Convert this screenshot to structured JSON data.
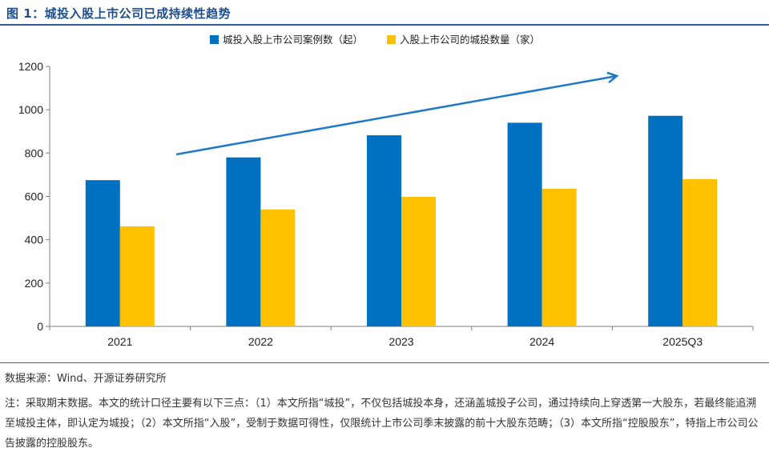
{
  "figure_title": "图 1：城投入股上市公司已成持续性趋势",
  "source_text": "数据来源：Wind、开源证券研究所",
  "note_text": "注：采取期末数据。本文的统计口径主要有以下三点：（1）本文所指“城投”，不仅包括城投本身，还涵盖城投子公司，通过持续向上穿透第一大股东，若最终能追溯至城投主体，即认定为城投；（2）本文所指“入股”，受制于数据可得性，仅限统计上市公司季末披露的前十大股东范畴；（3）本文所指“控股股东”，特指上市公司公告披露的控股股东。",
  "colors": {
    "series_1": "#0070c0",
    "series_2": "#ffc000",
    "arrow": "#1f78c8",
    "title": "#1f4e8c"
  },
  "chart_data": {
    "type": "bar",
    "title": "",
    "xlabel": "",
    "ylabel": "",
    "categories": [
      "2021",
      "2022",
      "2023",
      "2024",
      "2025Q3"
    ],
    "series": [
      {
        "name": "城投入股上市公司案例数（起）",
        "values": [
          675,
          780,
          882,
          940,
          972
        ]
      },
      {
        "name": "入股上市公司的城投数量（家）",
        "values": [
          462,
          540,
          598,
          635,
          680
        ]
      }
    ],
    "ylim": [
      0,
      1200
    ],
    "yticks": [
      0,
      200,
      400,
      600,
      800,
      1000,
      1200
    ],
    "grid": false,
    "legend_position": "top-center",
    "annotation": "upward trend arrow"
  }
}
